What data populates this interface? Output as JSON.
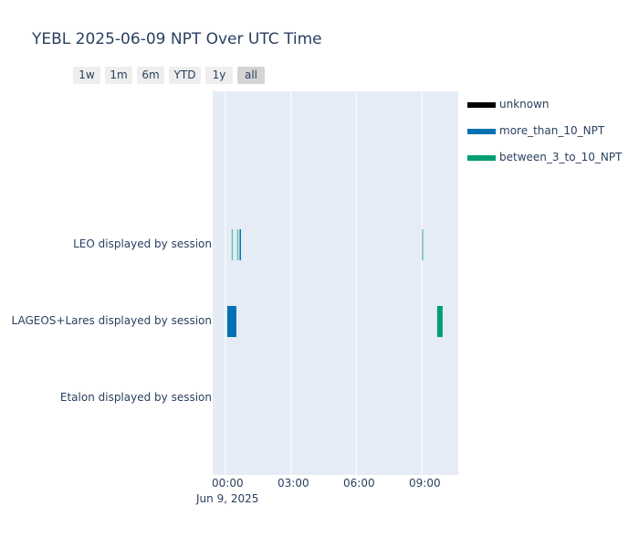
{
  "chart_data": {
    "type": "timeline",
    "title": "YEBL 2025-06-09 NPT Over UTC Time",
    "range_buttons": [
      "1w",
      "1m",
      "6m",
      "YTD",
      "1y",
      "all"
    ],
    "active_range": "all",
    "categories": [
      "LEO displayed by session",
      "LAGEOS+Lares displayed by session",
      "Etalon displayed by session"
    ],
    "x_ticks": [
      "00:00",
      "03:00",
      "06:00",
      "09:00"
    ],
    "x_tick_date": "Jun 9, 2025",
    "x_range": [
      "2025-06-08 23:25",
      "2025-06-09 10:40"
    ],
    "legend": [
      {
        "name": "unknown",
        "color": "#000000"
      },
      {
        "name": "more_than_10_NPT",
        "color": "#0072b2"
      },
      {
        "name": "between_3_to_10_NPT",
        "color": "#009e73"
      }
    ],
    "series": [
      {
        "category": "LEO displayed by session",
        "name": "between_3_to_10_NPT",
        "start": "2025-06-09 00:17",
        "end": "2025-06-09 00:19"
      },
      {
        "category": "LEO displayed by session",
        "name": "between_3_to_10_NPT",
        "start": "2025-06-09 00:32",
        "end": "2025-06-09 00:34"
      },
      {
        "category": "LEO displayed by session",
        "name": "more_than_10_NPT",
        "start": "2025-06-09 00:39",
        "end": "2025-06-09 00:42"
      },
      {
        "category": "LEO displayed by session",
        "name": "between_3_to_10_NPT",
        "start": "2025-06-09 09:00",
        "end": "2025-06-09 09:02"
      },
      {
        "category": "LAGEOS+Lares displayed by session",
        "name": "more_than_10_NPT",
        "start": "2025-06-09 00:05",
        "end": "2025-06-09 00:30"
      },
      {
        "category": "LAGEOS+Lares displayed by session",
        "name": "between_3_to_10_NPT",
        "start": "2025-06-09 09:42",
        "end": "2025-06-09 09:57"
      }
    ]
  }
}
